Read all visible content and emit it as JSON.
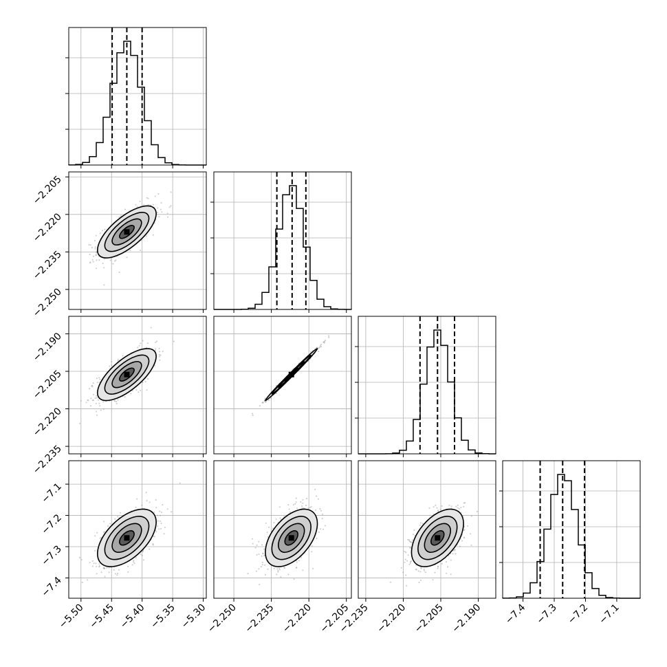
{
  "chart_data": {
    "type": "corner",
    "parameters": [
      {
        "range": [
          -5.52,
          -5.295
        ],
        "ticks": [
          -5.5,
          -5.45,
          -5.4,
          -5.35,
          -5.3
        ],
        "tick_labels": [
          "−5.50",
          "−5.45",
          "−5.40",
          "−5.35",
          "−5.30"
        ],
        "median": -5.425,
        "sigma": 0.024,
        "quantiles": [
          -5.449,
          -5.425,
          -5.4
        ]
      },
      {
        "range": [
          -2.258,
          -2.203
        ],
        "ticks": [
          -2.25,
          -2.235,
          -2.22,
          -2.205
        ],
        "tick_labels": [
          "−2.250",
          "−2.235",
          "−2.220",
          "−2.205"
        ],
        "median": -2.227,
        "sigma": 0.0052,
        "quantiles": [
          -2.2328,
          -2.2267,
          -2.2212
        ]
      },
      {
        "range": [
          -2.238,
          -2.183
        ],
        "ticks": [
          -2.235,
          -2.22,
          -2.205,
          -2.19
        ],
        "tick_labels": [
          "−2.235",
          "−2.220",
          "−2.205",
          "−2.190"
        ],
        "median": -2.2063,
        "sigma": 0.0052,
        "quantiles": [
          -2.2133,
          -2.2063,
          -2.1995
        ]
      },
      {
        "range": [
          -7.465,
          -7.025
        ],
        "ticks": [
          -7.4,
          -7.3,
          -7.2,
          -7.1
        ],
        "tick_labels": [
          "−7.4",
          "−7.3",
          "−7.2",
          "−7.1"
        ],
        "median": -7.272,
        "sigma": 0.046,
        "quantiles": [
          -7.345,
          -7.273,
          -7.203
        ]
      }
    ],
    "correlations": [
      [
        1,
        0.7,
        0.7,
        0.55
      ],
      [
        0.7,
        1,
        0.995,
        0.5
      ],
      [
        0.7,
        0.995,
        1,
        0.5
      ],
      [
        0.55,
        0.5,
        0.5,
        1
      ]
    ],
    "histogram_style": "step",
    "quantile_style": "dashed",
    "grid": true,
    "colors": {
      "ink": "#000000",
      "grid": "#b0b0b0",
      "scatter": "#9a9a9a",
      "background": "#ffffff"
    }
  }
}
